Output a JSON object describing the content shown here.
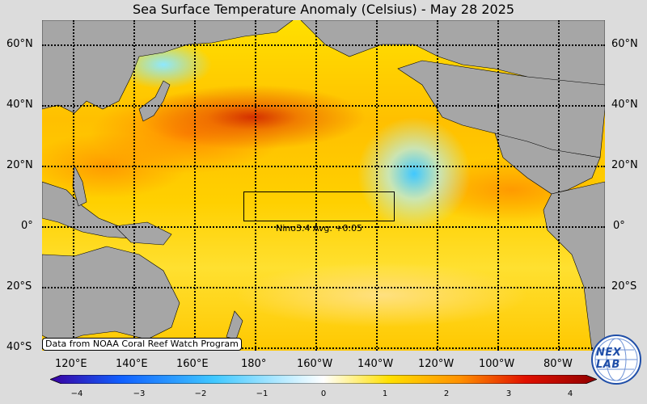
{
  "title": "Sea Surface Temperature Anomaly (Celsius) - May 28 2025",
  "lat_labels": [
    "60°N",
    "40°N",
    "20°N",
    "0°",
    "20°S",
    "40°S"
  ],
  "lon_labels": [
    "120°E",
    "140°E",
    "160°E",
    "180°",
    "160°W",
    "140°W",
    "120°W",
    "100°W",
    "80°W"
  ],
  "nino_label": "Nino3.4 Avg. +0.05",
  "credit": "Data from NOAA Coral Reef Watch Program",
  "colorbar": {
    "ticks": [
      "−4",
      "−3",
      "−2",
      "−1",
      "0",
      "1",
      "2",
      "3",
      "4"
    ],
    "colors": [
      "#3a00a0",
      "#1060ff",
      "#40c8ff",
      "#ffffff",
      "#ffe000",
      "#ff9000",
      "#e01000",
      "#900000"
    ]
  },
  "logo": {
    "text": "NEXLAB",
    "display": "NEX LAB"
  },
  "land_color": "#a6a6a6"
}
